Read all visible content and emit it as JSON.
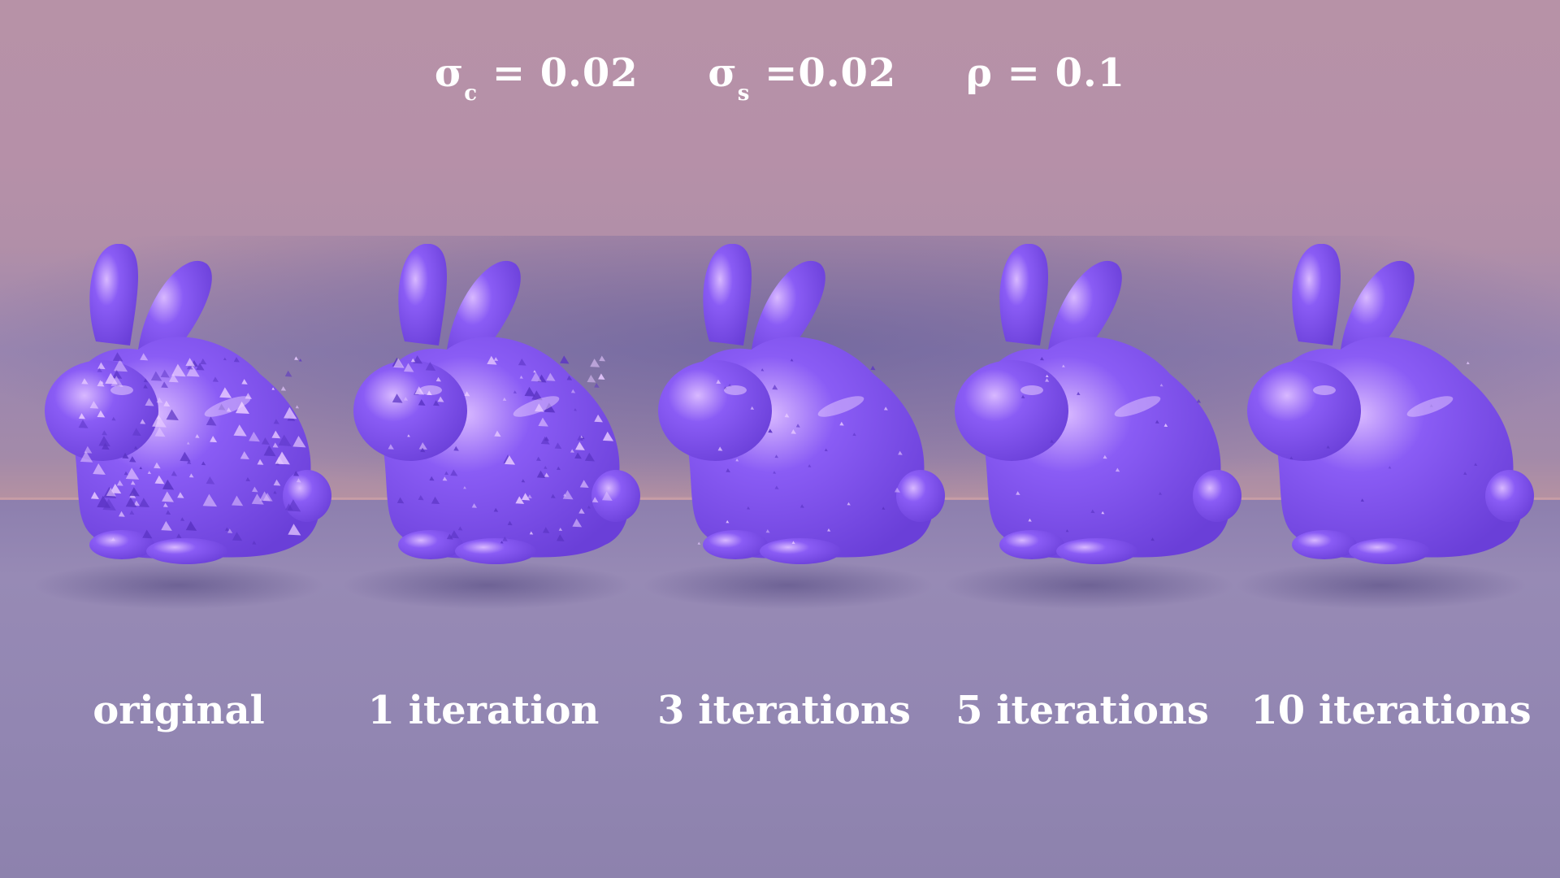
{
  "params": {
    "sigma_c_symbol": "σ",
    "sigma_c_sub": "c",
    "sigma_c_value": " = 0.02",
    "sigma_s_symbol": "σ",
    "sigma_s_sub": "s",
    "sigma_s_value": " =0.02",
    "rho_text": "ρ = 0.1"
  },
  "colors": {
    "bunny_fill": "#8a5cf5",
    "bunny_highlight": "#d8b8ff",
    "bunny_shade": "#6a3fd8"
  },
  "panels": [
    {
      "label": "original",
      "roughness": "high"
    },
    {
      "label": "1 iteration",
      "roughness": "medium"
    },
    {
      "label": "3 iterations",
      "roughness": "low"
    },
    {
      "label": "5 iterations",
      "roughness": "lower"
    },
    {
      "label": "10 iterations",
      "roughness": "smooth"
    }
  ]
}
